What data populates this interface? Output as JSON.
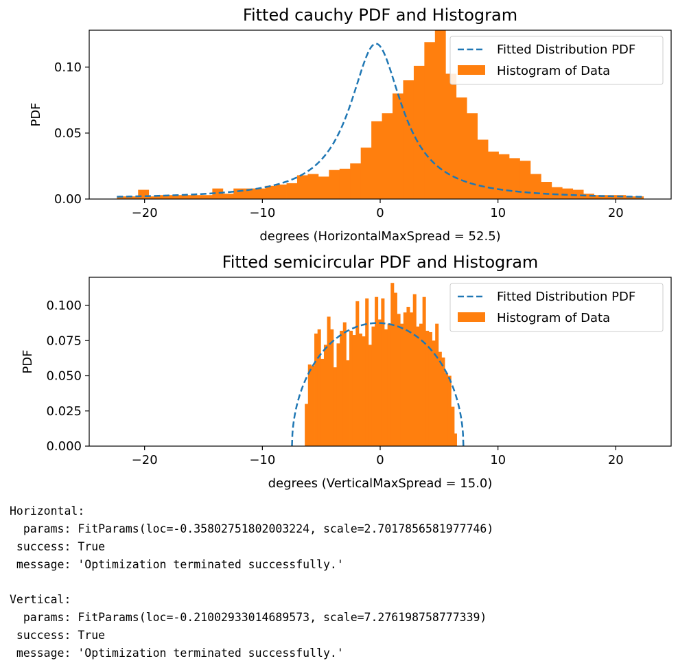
{
  "colors": {
    "hist": "#ff7f0e",
    "pdf": "#1f77b4",
    "axes": "#000000"
  },
  "chart_data": [
    {
      "type": "bar",
      "title": "Fitted cauchy PDF and Histogram",
      "xlabel": "degrees (HorizontalMaxSpread = 52.5)",
      "ylabel": "PDF",
      "xlim": [
        -24.7,
        24.7
      ],
      "ylim": [
        0,
        0.128
      ],
      "xticks": [
        -20,
        -10,
        0,
        10,
        20
      ],
      "xtick_labels": [
        "−20",
        "−10",
        "0",
        "10",
        "20"
      ],
      "yticks": [
        0,
        0.05,
        0.1
      ],
      "ytick_labels": [
        "0.00",
        "0.05",
        "0.10"
      ],
      "legend": {
        "placement": "upper right",
        "entries": [
          "Fitted Distribution PDF",
          "Histogram of Data"
        ]
      },
      "histogram": {
        "bin_edges": [
          -22.35,
          -21.45,
          -20.55,
          -19.65,
          -18.75,
          -17.85,
          -16.95,
          -16.05,
          -15.15,
          -14.25,
          -13.35,
          -12.45,
          -11.55,
          -10.65,
          -9.75,
          -8.85,
          -7.95,
          -7.05,
          -6.15,
          -5.25,
          -4.35,
          -3.45,
          -2.55,
          -1.65,
          -0.75,
          0.15,
          1.05,
          1.95,
          2.85,
          3.75,
          4.65,
          5.55,
          6.45,
          7.35,
          8.25,
          9.15,
          10.05,
          10.95,
          11.85,
          12.75,
          13.65,
          14.55,
          15.45,
          16.35,
          17.25,
          18.15,
          19.05,
          19.95,
          20.85,
          21.75,
          22.35
        ],
        "heights": [
          0.002,
          0.002,
          0.007,
          0.002,
          0.003,
          0.003,
          0.003,
          0.003,
          0.003,
          0.008,
          0.004,
          0.008,
          0.008,
          0.008,
          0.01,
          0.011,
          0.012,
          0.018,
          0.019,
          0.017,
          0.022,
          0.023,
          0.027,
          0.039,
          0.059,
          0.065,
          0.08,
          0.09,
          0.101,
          0.119,
          0.128,
          0.095,
          0.077,
          0.065,
          0.045,
          0.036,
          0.034,
          0.031,
          0.029,
          0.019,
          0.013,
          0.009,
          0.008,
          0.007,
          0.004,
          0.003,
          0.003,
          0.003,
          0.002,
          0.002
        ]
      },
      "pdf": {
        "distribution": "cauchy",
        "loc": -0.35802751802003224,
        "scale": 2.7017856581977746
      }
    },
    {
      "type": "bar",
      "title": "Fitted semicircular PDF and Histogram",
      "xlabel": "degrees (VerticalMaxSpread = 15.0)",
      "ylabel": "PDF",
      "xlim": [
        -24.7,
        24.7
      ],
      "ylim": [
        0,
        0.12
      ],
      "xticks": [
        -20,
        -10,
        0,
        10,
        20
      ],
      "xtick_labels": [
        "−20",
        "−10",
        "0",
        "10",
        "20"
      ],
      "yticks": [
        0,
        0.025,
        0.05,
        0.075,
        0.1
      ],
      "ytick_labels": [
        "0.000",
        "0.025",
        "0.050",
        "0.075",
        "0.100"
      ],
      "legend": {
        "placement": "upper right",
        "entries": [
          "Fitted Distribution PDF",
          "Histogram of Data"
        ]
      },
      "histogram": {
        "bin_edges": [
          -6.4,
          -6.13,
          -5.86,
          -5.59,
          -5.32,
          -5.05,
          -4.78,
          -4.51,
          -4.24,
          -3.97,
          -3.7,
          -3.43,
          -3.16,
          -2.89,
          -2.62,
          -2.35,
          -2.08,
          -1.81,
          -1.54,
          -1.27,
          -1.0,
          -0.73,
          -0.46,
          -0.19,
          0.08,
          0.35,
          0.62,
          0.89,
          1.16,
          1.43,
          1.7,
          1.97,
          2.24,
          2.51,
          2.78,
          3.05,
          3.32,
          3.59,
          3.86,
          4.13,
          4.4,
          4.67,
          4.94,
          5.21,
          5.48,
          5.75,
          6.02,
          6.29,
          6.5
        ],
        "heights": [
          0.03,
          0.058,
          0.057,
          0.08,
          0.083,
          0.062,
          0.072,
          0.092,
          0.083,
          0.056,
          0.073,
          0.082,
          0.088,
          0.061,
          0.082,
          0.079,
          0.103,
          0.08,
          0.078,
          0.105,
          0.072,
          0.085,
          0.106,
          0.09,
          0.105,
          0.083,
          0.087,
          0.116,
          0.109,
          0.094,
          0.087,
          0.095,
          0.099,
          0.095,
          0.108,
          0.085,
          0.087,
          0.106,
          0.082,
          0.081,
          0.075,
          0.087,
          0.067,
          0.063,
          0.052,
          0.05,
          0.028,
          0.009
        ]
      },
      "pdf": {
        "distribution": "semicircular",
        "loc": -0.21002933014689573,
        "scale": 7.276198758777339
      }
    }
  ],
  "output_lines": [
    "Horizontal:",
    "  params: FitParams(loc=-0.35802751802003224, scale=2.7017856581977746)",
    " success: True",
    " message: 'Optimization terminated successfully.'",
    "",
    "Vertical:",
    "  params: FitParams(loc=-0.21002933014689573, scale=7.276198758777339)",
    " success: True",
    " message: 'Optimization terminated successfully.'"
  ]
}
